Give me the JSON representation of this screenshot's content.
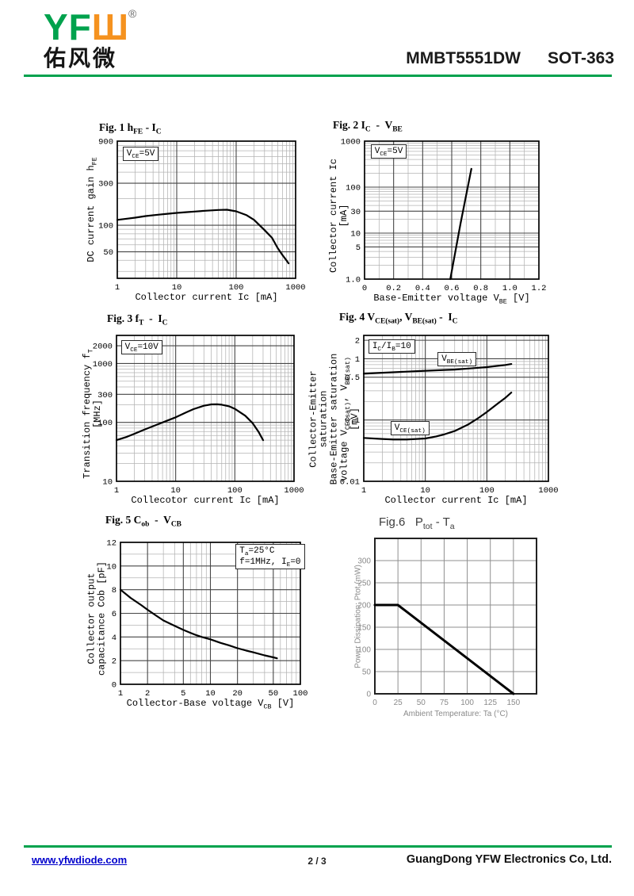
{
  "header": {
    "logo_yf": "YF",
    "logo_w": "Ш",
    "logo_reg": "®",
    "logo_cn": "佑风微",
    "part_number": "MMBT5551DW",
    "package": "SOT-363"
  },
  "footer": {
    "website": "www.yfwdiode.com",
    "page": "2 / 3",
    "company": "GuangDong YFW Electronics Co, Ltd."
  },
  "colors": {
    "brand_green": "#00a24d",
    "brand_orange": "#f5921f",
    "link_blue": "#0000cc"
  },
  "chart_data": [
    {
      "id": "fig1",
      "type": "line",
      "title": "Fig. 1 h~FE~ - I~C~",
      "xlabel": "Collector current Ic [mA]",
      "ylabel": "DC current gain h~FE~",
      "x_scale": "log",
      "y_scale": "log",
      "xlim": [
        1,
        1000
      ],
      "ylim": [
        25,
        900
      ],
      "x_ticks": [
        1,
        10,
        100,
        1000
      ],
      "x_tick_labels": [
        "1",
        "10",
        "100",
        "1000"
      ],
      "y_ticks": [
        900,
        300,
        100,
        50
      ],
      "y_tick_labels": [
        "900",
        "300",
        "100",
        "50"
      ],
      "grid": "log-minor",
      "annotations": [
        {
          "text": "V~CE~=5V",
          "fx": 0.03,
          "fy": 0.04
        }
      ],
      "series": [
        {
          "name": "hFE",
          "points": [
            [
              1,
              115
            ],
            [
              1.5,
              119
            ],
            [
              2,
              122
            ],
            [
              3,
              127
            ],
            [
              5,
              132
            ],
            [
              7,
              135
            ],
            [
              10,
              138
            ],
            [
              15,
              141
            ],
            [
              20,
              143
            ],
            [
              30,
              146
            ],
            [
              50,
              149
            ],
            [
              70,
              150
            ],
            [
              100,
              144
            ],
            [
              150,
              130
            ],
            [
              200,
              115
            ],
            [
              300,
              88
            ],
            [
              400,
              72
            ],
            [
              500,
              55
            ],
            [
              600,
              46
            ],
            [
              700,
              40
            ],
            [
              760,
              37
            ]
          ]
        }
      ]
    },
    {
      "id": "fig2",
      "type": "line",
      "title": "Fig. 2 I~C~  -  V~BE~",
      "xlabel": "Base-Emitter voltage V~BE~ [V]",
      "ylabel": "Collector current Ic [mA]",
      "x_scale": "linear",
      "y_scale": "log",
      "xlim": [
        0,
        1.2
      ],
      "ylim": [
        1,
        1000
      ],
      "x_minor_step": 0.1,
      "x_ticks": [
        0,
        0.2,
        0.4,
        0.6,
        0.8,
        1.0,
        1.2
      ],
      "x_tick_labels": [
        "0",
        "0.2",
        "0.4",
        "0.6",
        "0.8",
        "1.0",
        "1.2"
      ],
      "y_ticks": [
        1000,
        100,
        30,
        10,
        5,
        1
      ],
      "y_tick_labels": [
        "1000",
        "100",
        "30",
        "10",
        "5",
        "1.0"
      ],
      "grid": "log-minor",
      "annotations": [
        {
          "text": "V~CE~=5V",
          "fx": 0.035,
          "fy": 0.025
        }
      ],
      "series": [
        {
          "name": "Ic",
          "points": [
            [
              0.59,
              1.0
            ],
            [
              0.66,
              15.8
            ],
            [
              0.735,
              250
            ]
          ]
        }
      ]
    },
    {
      "id": "fig3",
      "type": "line",
      "title": "Fig. 3 f~T~  -  I~C~",
      "xlabel": "Collecotor current Ic [mA]",
      "ylabel": "Transition frequency f~T~ [MHz]",
      "x_scale": "log",
      "y_scale": "log",
      "xlim": [
        1,
        1000
      ],
      "ylim": [
        10,
        3000
      ],
      "x_ticks": [
        1,
        10,
        100,
        1000
      ],
      "x_tick_labels": [
        "1",
        "10",
        "100",
        "1000"
      ],
      "y_ticks": [
        2000,
        1000,
        300,
        100,
        10
      ],
      "y_tick_labels": [
        "2000",
        "1000",
        "300",
        "100",
        "10"
      ],
      "grid": "log-minor",
      "annotations": [
        {
          "text": "V~CE~=10V",
          "fx": 0.025,
          "fy": 0.035
        }
      ],
      "series": [
        {
          "name": "fT",
          "points": [
            [
              1,
              50
            ],
            [
              1.5,
              57
            ],
            [
              2,
              64
            ],
            [
              3,
              76
            ],
            [
              5,
              93
            ],
            [
              7,
              106
            ],
            [
              10,
              122
            ],
            [
              15,
              148
            ],
            [
              20,
              168
            ],
            [
              30,
              192
            ],
            [
              40,
              202
            ],
            [
              50,
              203
            ],
            [
              60,
              200
            ],
            [
              80,
              188
            ],
            [
              100,
              170
            ],
            [
              150,
              130
            ],
            [
              200,
              97
            ],
            [
              250,
              70
            ],
            [
              300,
              50
            ]
          ]
        }
      ]
    },
    {
      "id": "fig4",
      "type": "line",
      "title": "Fig. 4 V~CE(sat)~, V~BE(sat)~ -  I~C~",
      "xlabel": "Collector current Ic [mA]",
      "ylabel": "Collector-Emitter saturation\nBase-Emitter saturation\nvoltage V~CE(sat)~, V~BE(sat)~ [mV]",
      "x_scale": "log",
      "y_scale": "log",
      "xlim": [
        1,
        1000
      ],
      "ylim": [
        0.01,
        2.4
      ],
      "x_ticks": [
        1,
        10,
        100,
        1000
      ],
      "x_tick_labels": [
        "1",
        "10",
        "100",
        "1000"
      ],
      "y_ticks": [
        2,
        1,
        0.5,
        0.1,
        0.01
      ],
      "y_tick_labels": [
        "2",
        "1",
        "0.5",
        "0.1",
        "0.01"
      ],
      "grid": "log-minor",
      "annotations": [
        {
          "text": "I~C~/I~B~=10",
          "fx": 0.025,
          "fy": 0.025
        },
        {
          "text": "V~BE(sat)~",
          "fx": 0.4,
          "fy": 0.115
        },
        {
          "text": "V~CE(sat)~",
          "fx": 0.145,
          "fy": 0.585
        }
      ],
      "series": [
        {
          "name": "VBE(sat)",
          "points": [
            [
              1,
              0.57
            ],
            [
              2,
              0.59
            ],
            [
              3,
              0.6
            ],
            [
              5,
              0.615
            ],
            [
              10,
              0.635
            ],
            [
              20,
              0.655
            ],
            [
              30,
              0.665
            ],
            [
              50,
              0.69
            ],
            [
              100,
              0.73
            ],
            [
              150,
              0.765
            ],
            [
              200,
              0.79
            ],
            [
              250,
              0.82
            ]
          ]
        },
        {
          "name": "VCE(sat)",
          "points": [
            [
              1,
              0.051
            ],
            [
              2,
              0.049
            ],
            [
              3,
              0.048
            ],
            [
              5,
              0.048
            ],
            [
              10,
              0.05
            ],
            [
              15,
              0.054
            ],
            [
              20,
              0.058
            ],
            [
              30,
              0.066
            ],
            [
              50,
              0.085
            ],
            [
              70,
              0.105
            ],
            [
              100,
              0.135
            ],
            [
              150,
              0.185
            ],
            [
              200,
              0.23
            ],
            [
              250,
              0.28
            ]
          ]
        }
      ]
    },
    {
      "id": "fig5",
      "type": "line",
      "title": "Fig. 5 C~ob~  -  V~CB~",
      "xlabel": "Collector-Base voltage V~CB~ [V]",
      "ylabel": "Collector output capacitance Cob [pF]",
      "x_scale": "log",
      "y_scale": "linear",
      "xlim": [
        1,
        100
      ],
      "ylim": [
        0,
        12
      ],
      "y_minor_step": 1,
      "x_ticks": [
        1,
        2,
        5,
        10,
        20,
        50,
        100
      ],
      "x_tick_labels": [
        "1",
        "2",
        "5",
        "10",
        "20",
        "50",
        "100"
      ],
      "y_ticks": [
        0,
        2,
        4,
        6,
        8,
        10,
        12
      ],
      "y_tick_labels": [
        "0",
        "2",
        "4",
        "6",
        "8",
        "10",
        "12"
      ],
      "grid": "log-minor",
      "annotations": [
        {
          "text": "T~a~=25°C\nf=1MHz, I~E~=0",
          "fx": 0.64,
          "fy": 0.012
        }
      ],
      "series": [
        {
          "name": "Cob",
          "points": [
            [
              1,
              8.0
            ],
            [
              1.3,
              7.3
            ],
            [
              1.7,
              6.7
            ],
            [
              2,
              6.3
            ],
            [
              2.5,
              5.8
            ],
            [
              3,
              5.4
            ],
            [
              4,
              4.95
            ],
            [
              5,
              4.6
            ],
            [
              6,
              4.35
            ],
            [
              7,
              4.15
            ],
            [
              8,
              4.0
            ],
            [
              10,
              3.8
            ],
            [
              13,
              3.5
            ],
            [
              16,
              3.3
            ],
            [
              20,
              3.05
            ],
            [
              25,
              2.85
            ],
            [
              30,
              2.7
            ],
            [
              40,
              2.45
            ],
            [
              50,
              2.28
            ],
            [
              55,
              2.2
            ]
          ]
        }
      ]
    },
    {
      "id": "fig6",
      "type": "line",
      "style": "gray",
      "title": "Fig.6   P~tot~ - T~a~",
      "xlabel": "Ambient Temperature: Ta (°C)",
      "ylabel": "Power Dissipation: Ptot (mW)",
      "x_scale": "linear",
      "y_scale": "linear",
      "xlim": [
        0,
        175
      ],
      "ylim": [
        0,
        350
      ],
      "x_ticks": [
        0,
        25,
        50,
        75,
        100,
        125,
        150,
        175
      ],
      "x_tick_labels": [
        "0",
        "25",
        "50",
        "75",
        "100",
        "125",
        "150",
        ""
      ],
      "y_ticks": [
        0,
        50,
        100,
        150,
        200,
        250,
        300,
        350
      ],
      "y_tick_labels": [
        "0",
        "50",
        "100",
        "150",
        "200",
        "250",
        "300",
        ""
      ],
      "grid": "major-only",
      "annotations": [],
      "series": [
        {
          "name": "Ptot",
          "points": [
            [
              0,
              200
            ],
            [
              25,
              200
            ],
            [
              150,
              0
            ]
          ]
        }
      ]
    }
  ]
}
